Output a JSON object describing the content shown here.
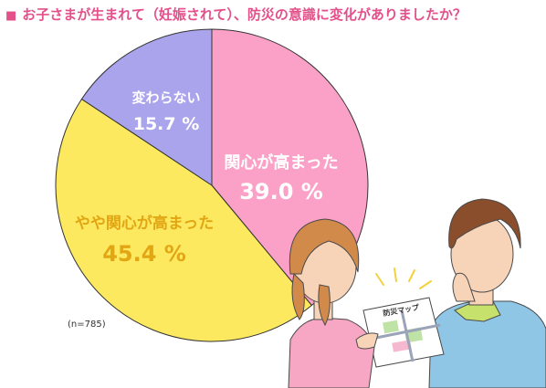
{
  "header": {
    "bullet": "■",
    "title": "お子さまが生まれて（妊娠されて）、防災の意識に変化がありましたか？"
  },
  "note": "(n=785)",
  "illustration": {
    "map_label": "防災マップ"
  },
  "chart_data": {
    "type": "pie",
    "title": "お子さまが生まれて（妊娠されて）、防災の意識に変化がありましたか？",
    "categories": [
      "関心が高まった",
      "やや関心が高まった",
      "変わらない"
    ],
    "values": [
      39.0,
      45.4,
      15.7
    ],
    "value_labels": [
      "39.0 %",
      "45.4 %",
      "15.7 %"
    ],
    "colors": [
      "#fba0c6",
      "#fde95f",
      "#aaa4ec"
    ],
    "label_colors": [
      "#ffffff",
      "#e2a614",
      "#ffffff"
    ],
    "legend": "none",
    "start": "top, clockwise"
  }
}
